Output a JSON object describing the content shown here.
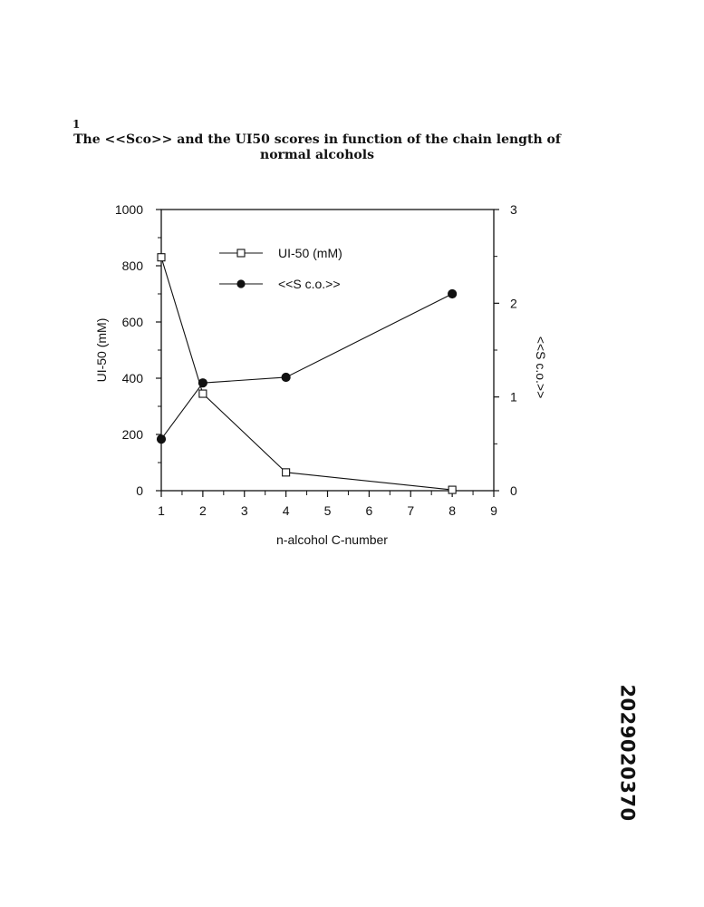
{
  "figure_marker": "1",
  "doc_id": "2029020370",
  "chart_data": {
    "type": "line",
    "title": "The <<Sco>> and the UI50 scores in function of the chain length of normal alcohols",
    "title_lines": [
      "The <<Sco>> and the UI50 scores in function of the chain length of",
      "normal alcohols"
    ],
    "xlabel": "n-alcohol C-number",
    "ylabel_left": "UI-50 (mM)",
    "ylabel_right": "<<S c.o.>>",
    "xlim": [
      1,
      9
    ],
    "x_ticks": [
      1,
      2,
      3,
      4,
      5,
      6,
      7,
      8,
      9
    ],
    "ylim_left": [
      0,
      1000
    ],
    "y_ticks_left": [
      0,
      200,
      400,
      600,
      800,
      1000
    ],
    "ylim_right": [
      0,
      3
    ],
    "y_ticks_right": [
      0,
      1,
      2,
      3
    ],
    "grid": false,
    "legend_position": "top-center",
    "series": [
      {
        "name": "UI-50 (mM)",
        "axis": "left",
        "marker": "open-square",
        "x": [
          1,
          2,
          4,
          8
        ],
        "values": [
          830,
          345,
          65,
          3
        ]
      },
      {
        "name": "<<S c.o.>>",
        "axis": "right",
        "marker": "filled-circle",
        "x": [
          1,
          2,
          4,
          8
        ],
        "values": [
          0.55,
          1.15,
          1.21,
          2.1
        ]
      }
    ]
  }
}
